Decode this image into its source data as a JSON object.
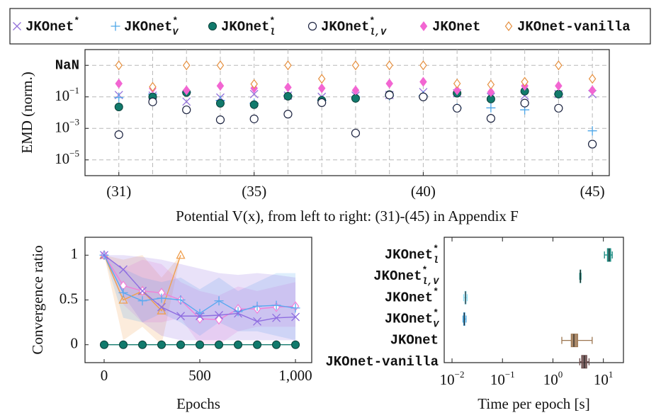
{
  "chart_data": [
    {
      "type": "scatter",
      "ylabel": "EMD (norm.)",
      "xlabel": "Potential V(x), from left to right: (31)-(45) in Appendix F",
      "x": [
        31,
        32,
        33,
        34,
        35,
        36,
        37,
        38,
        39,
        40,
        41,
        42,
        43,
        44,
        45
      ],
      "xlim": [
        30,
        45.5
      ],
      "ylim": [
        1e-06,
        100
      ],
      "ylog": true,
      "grid": true,
      "xticks": [
        {
          "value": 31,
          "label": "(31)"
        },
        {
          "value": 35,
          "label": "(35)"
        },
        {
          "value": 40,
          "label": "(40)"
        },
        {
          "value": 45,
          "label": "(45)"
        }
      ],
      "xgrid": [
        31,
        32,
        33,
        34,
        35,
        36,
        37,
        38,
        39,
        40,
        41,
        42,
        43,
        44,
        45
      ],
      "yticks": [
        {
          "value": 1e-05,
          "label": "10",
          "sup": "−5"
        },
        {
          "value": 0.001,
          "label": "10",
          "sup": "−3"
        },
        {
          "value": 0.1,
          "label": "10",
          "sup": "−1"
        },
        {
          "value": 10,
          "label": "NaN"
        }
      ],
      "series": [
        {
          "name": "JKOnet",
          "sup": "*",
          "color": "#9370db",
          "marker": "x",
          "values": [
            0.13,
            0.12,
            0.05,
            0.09,
            0.15,
            0.12,
            0.1,
            0.12,
            0.13,
            0.2,
            0.17,
            0.1,
            0.12,
            0.15,
            0.15
          ]
        },
        {
          "name": "JKOnet",
          "sup": "*",
          "sub": "V",
          "color": "#4da6e8",
          "marker": "plus",
          "values": [
            0.09,
            0.15,
            0.2,
            0.06,
            0.04,
            0.12,
            0.06,
            0.1,
            0.12,
            0.12,
            0.02,
            0.02,
            0.015,
            0.15,
            0.0007
          ]
        },
        {
          "name": "JKOnet",
          "sup": "*",
          "sub": "l",
          "color": "#117a6c",
          "marker": "circle",
          "values": [
            0.023,
            0.1,
            0.19,
            0.039,
            0.032,
            0.11,
            0.06,
            0.08,
            0.14,
            0.1,
            0.17,
            0.073,
            0.23,
            0.15,
            0.0001
          ]
        },
        {
          "name": "JKOnet",
          "sup": "*",
          "sub": "l,V",
          "color": "#1c2340",
          "marker": "ocircle",
          "values": [
            0.0004,
            0.048,
            0.015,
            0.0035,
            0.004,
            0.008,
            0.043,
            0.0005,
            0.13,
            0.1,
            0.019,
            0.0043,
            0.04,
            0.019,
            0.0001
          ]
        },
        {
          "name": "JKOnet",
          "color": "#f266d2",
          "marker": "diamond",
          "values": [
            0.7,
            0.35,
            0.26,
            0.5,
            0.35,
            0.4,
            0.35,
            0.26,
            0.7,
            0.9,
            0.26,
            0.2,
            0.5,
            0.5,
            0.26
          ]
        },
        {
          "name": "JKOnet-vanilla",
          "color": "#e59040",
          "marker": "odiamond",
          "values": [
            "NaN",
            0.43,
            "NaN",
            "NaN",
            0.65,
            "NaN",
            1.4,
            "NaN",
            "NaN",
            "NaN",
            0.7,
            0.6,
            0.9,
            "NaN",
            1.4
          ]
        }
      ]
    },
    {
      "type": "line",
      "ylabel": "Convergence ratio",
      "xlabel": "Epochs",
      "x": [
        0,
        100,
        200,
        300,
        400,
        500,
        600,
        700,
        800,
        900,
        1000
      ],
      "xlim": [
        -100,
        1085
      ],
      "ylim": [
        -0.2,
        1.2
      ],
      "xticks": [
        0,
        500,
        {
          "value": 1000,
          "label": "1,000"
        }
      ],
      "yticks": [
        0,
        0.5,
        1
      ],
      "series": [
        {
          "color": "#f0a050",
          "marker": "triangle",
          "values": [
            1,
            0.5,
            0.6,
            0.38,
            1,
            null,
            null,
            null,
            null,
            null,
            null
          ],
          "lower": [
            1,
            0.05,
            0.2,
            0,
            1,
            null,
            null,
            null,
            null,
            null,
            null
          ],
          "upper": [
            1,
            0.95,
            1,
            0.75,
            1,
            null,
            null,
            null,
            null,
            null,
            null
          ]
        },
        {
          "color": "#f27fd8",
          "marker": "odiamond",
          "values": [
            1,
            0.66,
            0.6,
            0.58,
            0.5,
            0.29,
            0.28,
            0.4,
            0.4,
            0.42,
            0.43
          ],
          "lower": [
            1,
            0.45,
            0.25,
            0.25,
            0.3,
            0,
            0,
            0.15,
            0.2,
            0.2,
            0.2
          ],
          "upper": [
            1,
            0.85,
            0.95,
            0.9,
            0.7,
            0.6,
            0.55,
            0.65,
            0.6,
            0.65,
            0.7
          ]
        },
        {
          "color": "#5aa9f0",
          "marker": "plus",
          "values": [
            1,
            0.58,
            0.49,
            0.52,
            0.5,
            0.35,
            0.49,
            0.37,
            0.43,
            0.44,
            0.41
          ],
          "lower": [
            1,
            0.3,
            0.25,
            0.35,
            0.25,
            0.1,
            0.25,
            0.15,
            0.15,
            0.1,
            0.05
          ],
          "upper": [
            1,
            0.85,
            0.75,
            0.7,
            0.75,
            0.62,
            0.75,
            0.6,
            0.7,
            0.8,
            0.8
          ]
        },
        {
          "color": "#8f6ee0",
          "marker": "x",
          "values": [
            1,
            0.84,
            0.6,
            0.42,
            0.32,
            0.32,
            0.33,
            0.35,
            0.26,
            0.3,
            0.31
          ],
          "lower": [
            1,
            0.55,
            0.25,
            0.1,
            0.05,
            0.05,
            0.05,
            0.05,
            0.05,
            0.05,
            0.05
          ],
          "upper": [
            1,
            1,
            0.98,
            0.95,
            0.9,
            0.85,
            0.8,
            0.78,
            0.8,
            0.78,
            0.75
          ]
        },
        {
          "color": "#117a6c",
          "marker": "circle",
          "values": [
            0,
            0,
            0,
            0,
            0,
            0,
            0,
            0,
            0,
            0,
            0
          ]
        }
      ]
    },
    {
      "type": "box",
      "xlabel": "Time per epoch [s]",
      "xlog": true,
      "xlim": [
        0.007,
        25
      ],
      "xticks": [
        {
          "value": 0.01,
          "label": "10",
          "sup": "−2"
        },
        {
          "value": 0.1,
          "label": "10",
          "sup": "−1"
        },
        {
          "value": 1,
          "label": "10",
          "sup": "0"
        },
        {
          "value": 10,
          "label": "10",
          "sup": "1"
        }
      ],
      "categories": [
        {
          "name": "JKOnet",
          "sup": "*",
          "sub": "l"
        },
        {
          "name": "JKOnet",
          "sup": "*",
          "sub": "l,V"
        },
        {
          "name": "JKOnet",
          "sup": "*"
        },
        {
          "name": "JKOnet",
          "sup": "*",
          "sub": "V"
        },
        {
          "name": "JKOnet"
        },
        {
          "name": "JKOnet-vanilla"
        }
      ],
      "colors": [
        "#13877c",
        "#13877c",
        "#8fe0f5",
        "#4aa8e0",
        "#9c7650",
        "#6b4a4a"
      ],
      "min": [
        10.5,
        3.4,
        0.017,
        0.0165,
        1.5,
        3.4
      ],
      "q1": [
        12,
        3.45,
        0.018,
        0.017,
        2.3,
        3.7
      ],
      "median": [
        13,
        3.5,
        0.0185,
        0.0175,
        2.6,
        4.2
      ],
      "q3": [
        14,
        3.55,
        0.019,
        0.018,
        3.1,
        4.7
      ],
      "max": [
        15,
        3.6,
        0.02,
        0.019,
        6,
        5.2
      ]
    }
  ]
}
